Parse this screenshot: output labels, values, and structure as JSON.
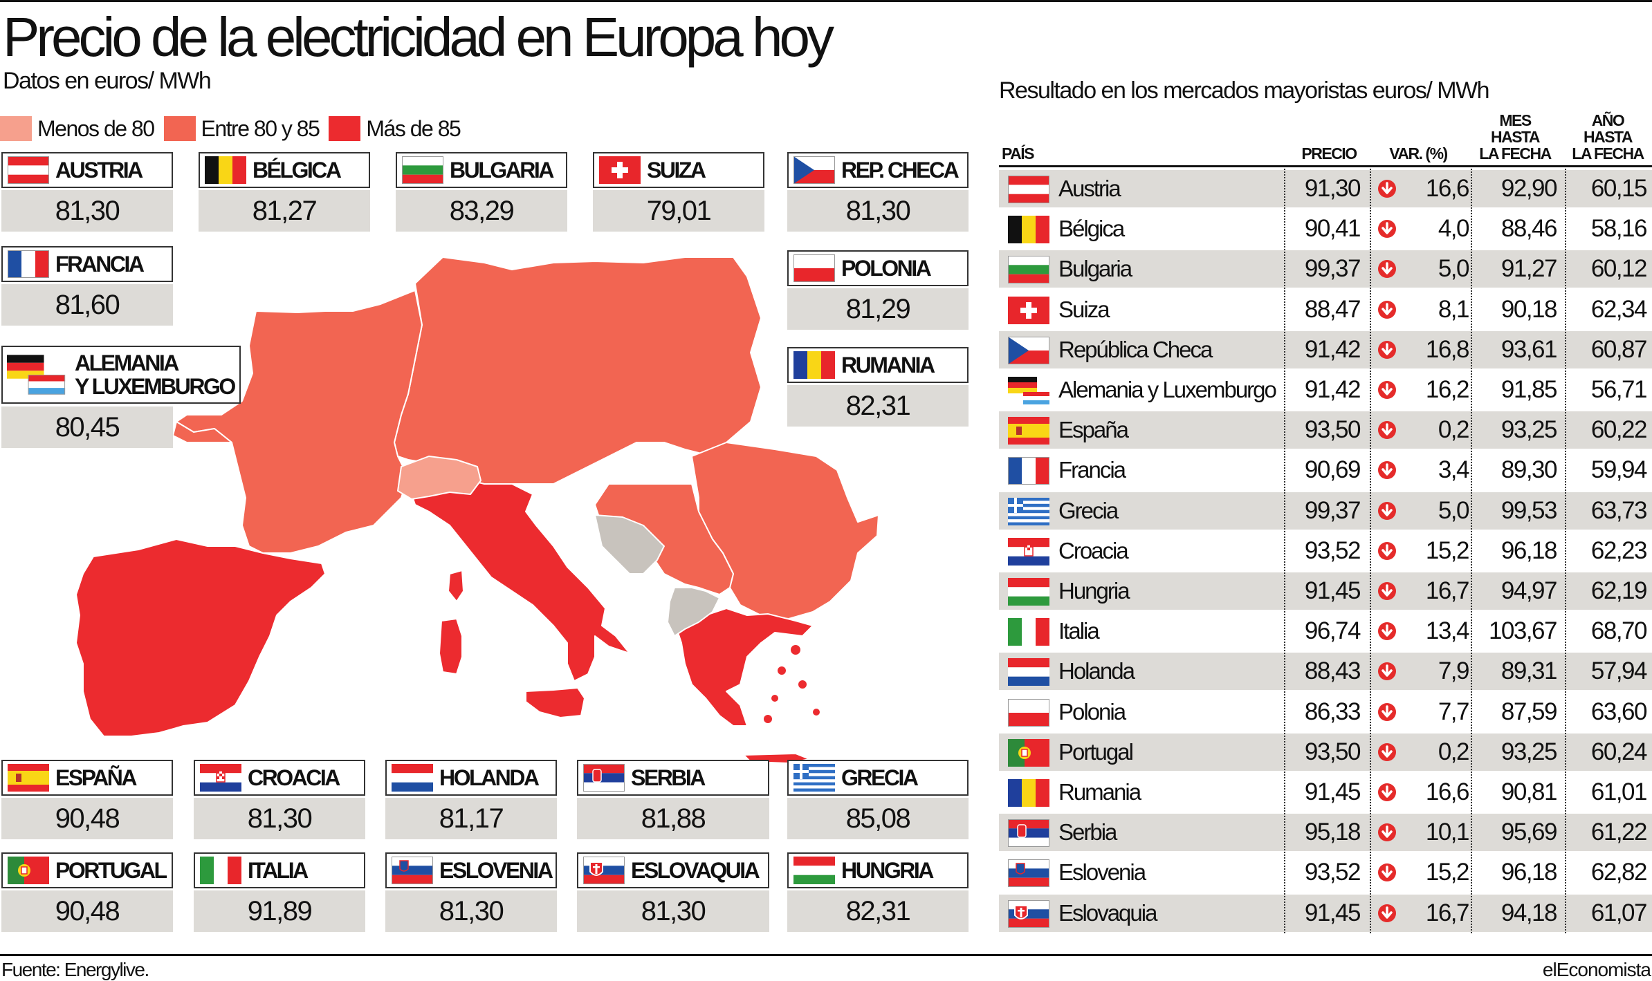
{
  "title": "Precio de la electricidad en Europa hoy",
  "subtitle": "Datos en euros/ MWh",
  "legend": [
    {
      "label": "Menos de 80",
      "color": "#f6a08d"
    },
    {
      "label": "Entre 80 y 85",
      "color": "#f26552"
    },
    {
      "label": "Más de 85",
      "color": "#ec2b2f"
    }
  ],
  "colors": {
    "no_data": "#c8c3bd",
    "value_bg": "#dddbd7",
    "arrow": "#e52b2a"
  },
  "cards": [
    {
      "name": "AUSTRIA",
      "value": "81,30",
      "flag": "austria-flag"
    },
    {
      "name": "BÉLGICA",
      "value": "81,27",
      "flag": "belgium-flag"
    },
    {
      "name": "BULGARIA",
      "value": "83,29",
      "flag": "bulgaria-flag"
    },
    {
      "name": "SUIZA",
      "value": "79,01",
      "flag": "switzerland-flag"
    },
    {
      "name": "REP. CHECA",
      "value": "81,30",
      "flag": "czech-flag"
    },
    {
      "name": "FRANCIA",
      "value": "81,60",
      "flag": "france-flag"
    },
    {
      "name": "POLONIA",
      "value": "81,29",
      "flag": "poland-flag"
    },
    {
      "name": "ALEMANIA\nY LUXEMBURGO",
      "value": "80,45",
      "flag": "germany-luxembourg-flag"
    },
    {
      "name": "RUMANIA",
      "value": "82,31",
      "flag": "romania-flag"
    },
    {
      "name": "ESPAÑA",
      "value": "90,48",
      "flag": "spain-flag"
    },
    {
      "name": "CROACIA",
      "value": "81,30",
      "flag": "croatia-flag"
    },
    {
      "name": "HOLANDA",
      "value": "81,17",
      "flag": "netherlands-flag"
    },
    {
      "name": "SERBIA",
      "value": "81,88",
      "flag": "serbia-flag"
    },
    {
      "name": "GRECIA",
      "value": "85,08",
      "flag": "greece-flag"
    },
    {
      "name": "PORTUGAL",
      "value": "90,48",
      "flag": "portugal-flag"
    },
    {
      "name": "ITALIA",
      "value": "91,89",
      "flag": "italy-flag"
    },
    {
      "name": "ESLOVENIA",
      "value": "81,30",
      "flag": "slovenia-flag"
    },
    {
      "name": "ESLOVAQUIA",
      "value": "81,30",
      "flag": "slovakia-flag"
    },
    {
      "name": "HUNGRIA",
      "value": "82,31",
      "flag": "hungary-flag"
    }
  ],
  "table": {
    "title": "Resultado en los mercados mayoristas euros/ MWh",
    "headers": {
      "pais": "PAÍS",
      "precio": "PRECIO",
      "var": "VAR. (%)",
      "mes": "MES\nHASTA\nLA FECHA",
      "ano": "AÑO\nHASTA\nLA FECHA"
    },
    "rows": [
      {
        "country": "Austria",
        "flag": "austria-flag",
        "precio": "91,30",
        "var": "16,6",
        "mes": "92,90",
        "ano": "60,15"
      },
      {
        "country": "Bélgica",
        "flag": "belgium-flag",
        "precio": "90,41",
        "var": "4,0",
        "mes": "88,46",
        "ano": "58,16"
      },
      {
        "country": "Bulgaria",
        "flag": "bulgaria-flag",
        "precio": "99,37",
        "var": "5,0",
        "mes": "91,27",
        "ano": "60,12"
      },
      {
        "country": "Suiza",
        "flag": "switzerland-flag",
        "precio": "88,47",
        "var": "8,1",
        "mes": "90,18",
        "ano": "62,34"
      },
      {
        "country": "República Checa",
        "flag": "czech-flag",
        "precio": "91,42",
        "var": "16,8",
        "mes": "93,61",
        "ano": "60,87"
      },
      {
        "country": "Alemania y Luxemburgo",
        "flag": "germany-luxembourg-flag",
        "precio": "91,42",
        "var": "16,2",
        "mes": "91,85",
        "ano": "56,71"
      },
      {
        "country": "España",
        "flag": "spain-flag",
        "precio": "93,50",
        "var": "0,2",
        "mes": "93,25",
        "ano": "60,22"
      },
      {
        "country": "Francia",
        "flag": "france-flag",
        "precio": "90,69",
        "var": "3,4",
        "mes": "89,30",
        "ano": "59,94"
      },
      {
        "country": "Grecia",
        "flag": "greece-flag",
        "precio": "99,37",
        "var": "5,0",
        "mes": "99,53",
        "ano": "63,73"
      },
      {
        "country": "Croacia",
        "flag": "croatia-flag",
        "precio": "93,52",
        "var": "15,2",
        "mes": "96,18",
        "ano": "62,23"
      },
      {
        "country": "Hungria",
        "flag": "hungary-flag",
        "precio": "91,45",
        "var": "16,7",
        "mes": "94,97",
        "ano": "62,19"
      },
      {
        "country": "Italia",
        "flag": "italy-flag",
        "precio": "96,74",
        "var": "13,4",
        "mes": "103,67",
        "ano": "68,70"
      },
      {
        "country": "Holanda",
        "flag": "netherlands-flag",
        "precio": "88,43",
        "var": "7,9",
        "mes": "89,31",
        "ano": "57,94"
      },
      {
        "country": "Polonia",
        "flag": "poland-flag",
        "precio": "86,33",
        "var": "7,7",
        "mes": "87,59",
        "ano": "63,60"
      },
      {
        "country": "Portugal",
        "flag": "portugal-flag",
        "precio": "93,50",
        "var": "0,2",
        "mes": "93,25",
        "ano": "60,24"
      },
      {
        "country": "Rumania",
        "flag": "romania-flag",
        "precio": "91,45",
        "var": "16,6",
        "mes": "90,81",
        "ano": "61,01"
      },
      {
        "country": "Serbia",
        "flag": "serbia-flag",
        "precio": "95,18",
        "var": "10,1",
        "mes": "95,69",
        "ano": "61,22"
      },
      {
        "country": "Eslovenia",
        "flag": "slovenia-flag",
        "precio": "93,52",
        "var": "15,2",
        "mes": "96,18",
        "ano": "62,82"
      },
      {
        "country": "Eslovaquia",
        "flag": "slovakia-flag",
        "precio": "91,45",
        "var": "16,7",
        "mes": "94,18",
        "ano": "61,07"
      }
    ]
  },
  "map": {
    "regions": [
      {
        "name": "spain-portugal",
        "category": "Más de 85"
      },
      {
        "name": "italy",
        "category": "Más de 85"
      },
      {
        "name": "greece",
        "category": "Más de 85"
      },
      {
        "name": "france",
        "category": "Entre 80 y 85"
      },
      {
        "name": "central-europe",
        "category": "Entre 80 y 85"
      },
      {
        "name": "poland",
        "category": "Entre 80 y 85"
      },
      {
        "name": "romania",
        "category": "Entre 80 y 85"
      },
      {
        "name": "switzerland",
        "category": "Menos de 80"
      },
      {
        "name": "bosnia",
        "category": "no data"
      },
      {
        "name": "montenegro-albania",
        "category": "no data"
      }
    ]
  },
  "chart_data": [
    {
      "type": "table",
      "title": "Precio de la electricidad en Europa hoy",
      "unit": "Datos en euros/ MWh",
      "categories": [
        "AUSTRIA",
        "BÉLGICA",
        "BULGARIA",
        "SUIZA",
        "REP. CHECA",
        "FRANCIA",
        "POLONIA",
        "ALEMANIA Y LUXEMBURGO",
        "RUMANIA",
        "ESPAÑA",
        "CROACIA",
        "HOLANDA",
        "SERBIA",
        "GRECIA",
        "PORTUGAL",
        "ITALIA",
        "ESLOVENIA",
        "ESLOVAQUIA",
        "HUNGRIA"
      ],
      "values": [
        81.3,
        81.27,
        83.29,
        79.01,
        81.3,
        81.6,
        81.29,
        80.45,
        82.31,
        90.48,
        81.3,
        81.17,
        81.88,
        85.08,
        90.48,
        91.89,
        81.3,
        81.3,
        82.31
      ]
    },
    {
      "type": "table",
      "title": "Resultado en los mercados mayoristas euros/ MWh",
      "columns": [
        "PAÍS",
        "PRECIO",
        "VAR. (%)",
        "MES HASTA LA FECHA",
        "AÑO HASTA LA FECHA"
      ],
      "rows": [
        [
          "Austria",
          91.3,
          -16.6,
          92.9,
          60.15
        ],
        [
          "Bélgica",
          90.41,
          -4.0,
          88.46,
          58.16
        ],
        [
          "Bulgaria",
          99.37,
          -5.0,
          91.27,
          60.12
        ],
        [
          "Suiza",
          88.47,
          -8.1,
          90.18,
          62.34
        ],
        [
          "República Checa",
          91.42,
          -16.8,
          93.61,
          60.87
        ],
        [
          "Alemania y Luxemburgo",
          91.42,
          -16.2,
          91.85,
          56.71
        ],
        [
          "España",
          93.5,
          -0.2,
          93.25,
          60.22
        ],
        [
          "Francia",
          90.69,
          -3.4,
          89.3,
          59.94
        ],
        [
          "Grecia",
          99.37,
          -5.0,
          99.53,
          63.73
        ],
        [
          "Croacia",
          93.52,
          -15.2,
          96.18,
          62.23
        ],
        [
          "Hungria",
          91.45,
          -16.7,
          94.97,
          62.19
        ],
        [
          "Italia",
          96.74,
          -13.4,
          103.67,
          68.7
        ],
        [
          "Holanda",
          88.43,
          -7.9,
          89.31,
          57.94
        ],
        [
          "Polonia",
          86.33,
          -7.7,
          87.59,
          63.6
        ],
        [
          "Portugal",
          93.5,
          -0.2,
          93.25,
          60.24
        ],
        [
          "Rumania",
          91.45,
          -16.6,
          90.81,
          61.01
        ],
        [
          "Serbia",
          95.18,
          -10.1,
          95.69,
          61.22
        ],
        [
          "Eslovenia",
          93.52,
          -15.2,
          96.18,
          62.82
        ],
        [
          "Eslovaquia",
          91.45,
          -16.7,
          94.18,
          61.07
        ]
      ]
    }
  ],
  "footer": {
    "source": "Fuente: Energylive.",
    "brand": "elEconomista"
  }
}
